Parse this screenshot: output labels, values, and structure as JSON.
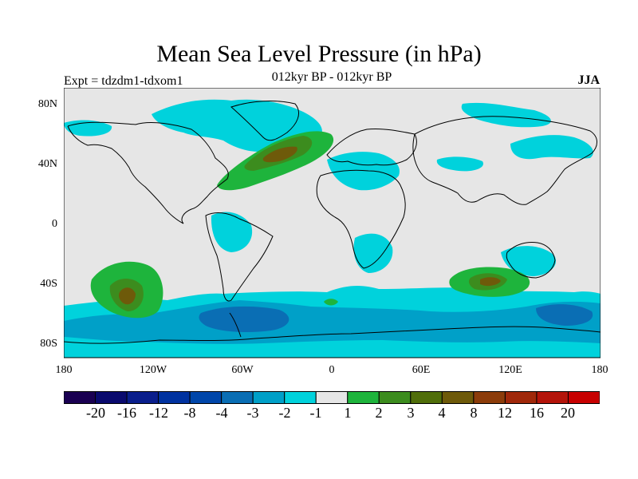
{
  "title": "Mean Sea Level Pressure (in hPa)",
  "experiment": "Expt = tdzdm1-tdxom1",
  "period": "012kyr BP - 012kyr BP",
  "season": "JJA",
  "lat_ticks": [
    "80N",
    "40N",
    "0",
    "40S",
    "80S"
  ],
  "lon_ticks": [
    "180",
    "120W",
    "60W",
    "0",
    "60E",
    "120E",
    "180"
  ],
  "colorbar": {
    "colors": [
      "#1a0052",
      "#0a0a6e",
      "#0a1e8c",
      "#0032a0",
      "#0046aa",
      "#0a6eb4",
      "#00a0c8",
      "#00d2dc",
      "#e6e6e6",
      "#1eb43c",
      "#3c8c1e",
      "#506e0a",
      "#6e5a0a",
      "#8c3c0a",
      "#a0280a",
      "#b4140a",
      "#c80000"
    ],
    "labels": [
      "-20",
      "-16",
      "-12",
      "-8",
      "-4",
      "-3",
      "-2",
      "-1",
      "1",
      "2",
      "3",
      "4",
      "8",
      "12",
      "16",
      "20"
    ]
  },
  "map_colors": {
    "background": "#e6e6e6",
    "neg1": "#00d2dc",
    "neg2": "#00a0c8",
    "neg3": "#0a6eb4",
    "pos2": "#1eb43c",
    "pos3": "#3c8c1e",
    "pos4": "#6e5a0a",
    "coast": "#000000"
  }
}
